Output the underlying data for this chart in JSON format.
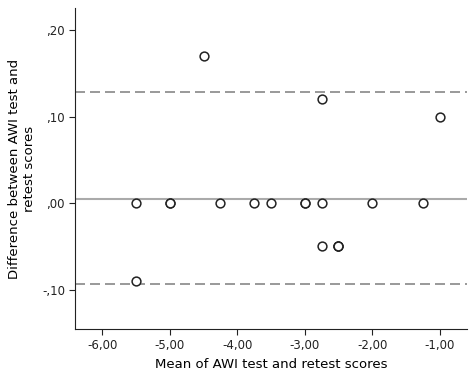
{
  "x_points": [
    -5.5,
    -5.0,
    -5.0,
    -4.5,
    -4.25,
    -3.75,
    -3.5,
    -3.0,
    -3.0,
    -2.75,
    -2.75,
    -2.5,
    -2.5,
    -2.0,
    -1.25,
    -1.0,
    -5.5,
    -2.75,
    -2.5
  ],
  "y_points": [
    0.0,
    0.0,
    0.0,
    0.17,
    0.0,
    0.0,
    0.0,
    0.0,
    0.0,
    0.12,
    0.0,
    -0.05,
    -0.05,
    0.0,
    0.0,
    0.1,
    -0.09,
    -0.05,
    -0.05
  ],
  "mean_line": 0.005,
  "upper_loa": 0.128,
  "lower_loa": -0.093,
  "xlim": [
    -6.4,
    -0.6
  ],
  "ylim": [
    -0.145,
    0.225
  ],
  "xticks": [
    -6.0,
    -5.0,
    -4.0,
    -3.0,
    -2.0,
    -1.0
  ],
  "yticks": [
    -0.1,
    0.0,
    0.1,
    0.2
  ],
  "ytick_labels": [
    "-,10",
    ",00",
    ",10",
    ",20"
  ],
  "xtick_labels": [
    "-6,00",
    "-5,00",
    "-4,00",
    "-3,00",
    "-2,00",
    "-1,00"
  ],
  "xlabel": "Mean of AWI test and retest scores",
  "ylabel": "Difference between AWI test and\nretest scores",
  "line_color": "#aaaaaa",
  "dashed_color": "#888888",
  "marker_facecolor": "white",
  "marker_edgecolor": "#222222",
  "spine_color": "#222222",
  "background_color": "#ffffff",
  "tick_fontsize": 8.5,
  "label_fontsize": 9.5
}
